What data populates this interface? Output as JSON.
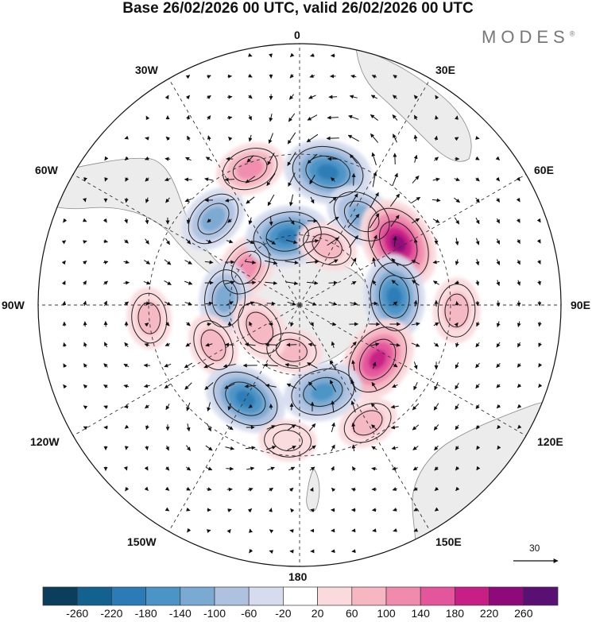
{
  "title": "Base 26/02/2026 00 UTC, valid 26/02/2026 00 UTC",
  "brand": "MODES",
  "brand_mark": "®",
  "longitude_labels": {
    "north": "0",
    "n_east": "30E",
    "e_north": "60E",
    "east": "90E",
    "e_south": "120E",
    "s_east": "150E",
    "south": "180",
    "s_west": "150W",
    "w_south": "120W",
    "west": "90W",
    "w_north": "60W",
    "n_west": "30W"
  },
  "vector_scale": {
    "label": "30",
    "icon": "arrow-right-icon"
  },
  "colorbar": {
    "ticks": [
      "-260",
      "-220",
      "-180",
      "-140",
      "-100",
      "-60",
      "-20",
      "20",
      "60",
      "100",
      "140",
      "180",
      "220",
      "260"
    ],
    "colors": [
      "#0b3d5c",
      "#13618f",
      "#2b7bb6",
      "#4b94c6",
      "#7aa9d2",
      "#aec2e0",
      "#d6dcee",
      "#ffffff",
      "#fadadd",
      "#f6b7c3",
      "#f08bae",
      "#e4569b",
      "#c71f85",
      "#8e0a7a",
      "#5a0f72"
    ]
  },
  "colors": {
    "land": "#ececec",
    "coast": "#888888",
    "grid": "#333333",
    "border": "#111111"
  },
  "anomalies": [
    {
      "lon": -45,
      "lat": -40,
      "value": -110
    },
    {
      "lon": -20,
      "lat": -32,
      "value": 100
    },
    {
      "lon": 12,
      "lat": -35,
      "value": -200
    },
    {
      "lon": 35,
      "lat": -45,
      "value": -130
    },
    {
      "lon": 58,
      "lat": -42,
      "value": 230
    },
    {
      "lon": -55,
      "lat": -62,
      "value": 110
    },
    {
      "lon": -10,
      "lat": -60,
      "value": -180
    },
    {
      "lon": 25,
      "lat": -62,
      "value": 60
    },
    {
      "lon": 85,
      "lat": -50,
      "value": -180
    },
    {
      "lon": 92,
      "lat": -28,
      "value": 80
    },
    {
      "lon": -85,
      "lat": -58,
      "value": -110
    },
    {
      "lon": -115,
      "lat": -50,
      "value": 70
    },
    {
      "lon": -95,
      "lat": -30,
      "value": 60
    },
    {
      "lon": 125,
      "lat": -50,
      "value": 200
    },
    {
      "lon": 165,
      "lat": -52,
      "value": -150
    },
    {
      "lon": -150,
      "lat": -45,
      "value": -180
    },
    {
      "lon": -170,
      "lat": -70,
      "value": 60
    },
    {
      "lon": 150,
      "lat": -35,
      "value": 60
    },
    {
      "lon": -175,
      "lat": -35,
      "value": 40
    },
    {
      "lon": -120,
      "lat": -70,
      "value": 90
    }
  ]
}
